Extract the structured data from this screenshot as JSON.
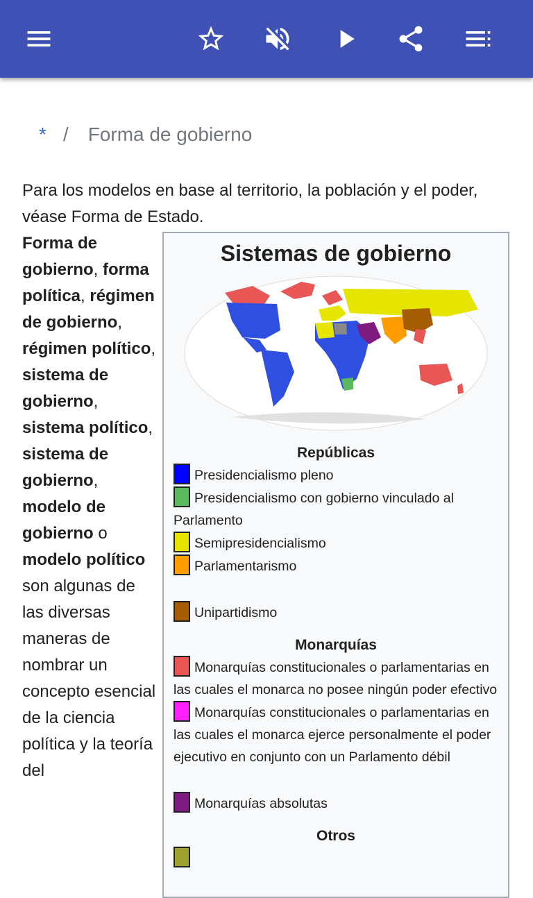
{
  "appbar": {
    "menu_icon": "hamburger-menu-icon",
    "star_icon": "star-outline-icon",
    "mute_icon": "volume-off-icon",
    "play_icon": "play-icon",
    "share_icon": "share-icon",
    "toc_icon": "list-menu-icon",
    "color": "#3f51b5"
  },
  "breadcrumb": {
    "home": "*",
    "separator": "/",
    "current": "Forma de gobierno"
  },
  "article": {
    "intro": "Para los modelos en base al territorio, la población y el poder, véase Forma de Estado.",
    "lead": [
      {
        "text": "Forma de gobierno",
        "bold": true
      },
      {
        "text": ", ",
        "bold": false
      },
      {
        "text": "forma política",
        "bold": true
      },
      {
        "text": ", ",
        "bold": false
      },
      {
        "text": "régimen de gobierno",
        "bold": true
      },
      {
        "text": ", ",
        "bold": false
      },
      {
        "text": "régimen político",
        "bold": true
      },
      {
        "text": ", ",
        "bold": false
      },
      {
        "text": "sistema de gobierno",
        "bold": true
      },
      {
        "text": ", ",
        "bold": false
      },
      {
        "text": "sistema político",
        "bold": true
      },
      {
        "text": ", ",
        "bold": false
      },
      {
        "text": "sistema de gobierno",
        "bold": true
      },
      {
        "text": ", ",
        "bold": false
      },
      {
        "text": "modelo de gobierno",
        "bold": true
      },
      {
        "text": " o ",
        "bold": false
      },
      {
        "text": "modelo político",
        "bold": true
      },
      {
        "text": " son algunas de las diversas maneras de nombrar un concepto esencial de la ciencia política y la teoría del",
        "bold": false
      }
    ]
  },
  "infobox": {
    "title": "Sistemas de gobierno",
    "map_alt": "world-map-governments",
    "sections": [
      {
        "heading": "Repúblicas",
        "items": [
          {
            "color": "#0000ff",
            "label": "Presidencialismo pleno"
          },
          {
            "color": "#5cb85c",
            "label": "Presidencialismo con gobierno vinculado al Parlamento"
          },
          {
            "color": "#e5e500",
            "label": "Semipresidencialismo"
          },
          {
            "color": "#ff9c00",
            "label": "Parlamentarismo"
          },
          {
            "gap": true
          },
          {
            "color": "#a65c00",
            "label": "Unipartidismo"
          }
        ]
      },
      {
        "heading": "Monarquías",
        "items": [
          {
            "color": "#e85656",
            "label": "Monarquías constitucionales o parlamentarias en las cuales el monarca no posee ningún poder efectivo"
          },
          {
            "color": "#ff20ff",
            "label": "Monarquías constitucionales o parlamentarias en las cuales el monarca ejerce personalmente el poder ejecutivo en conjunto con un Parlamento débil"
          },
          {
            "gap": true
          },
          {
            "color": "#7f1a7f",
            "label": "Monarquías absolutas"
          }
        ]
      },
      {
        "heading": "Otros",
        "items": [
          {
            "color": "#9ea030",
            "label": ""
          }
        ]
      }
    ]
  }
}
